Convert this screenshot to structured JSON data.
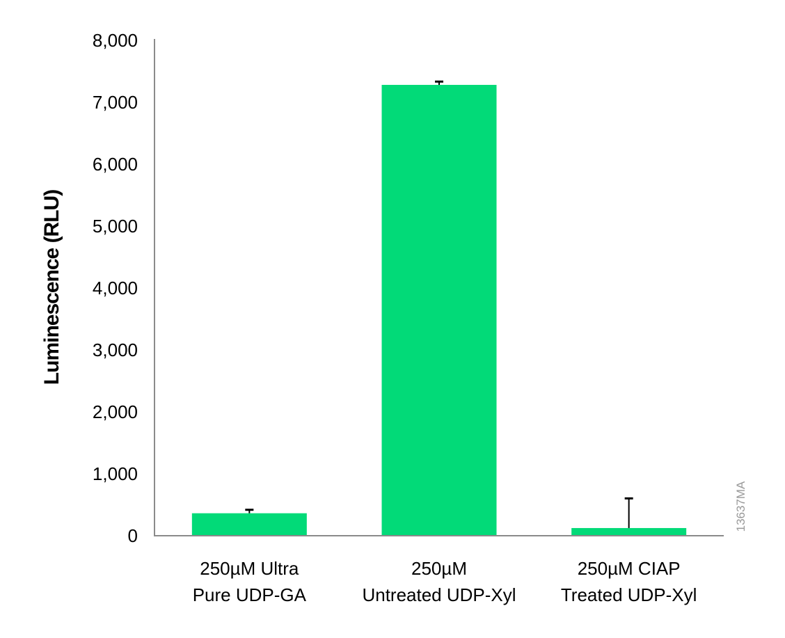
{
  "chart_data": {
    "type": "bar",
    "title": "",
    "xlabel": "",
    "ylabel": "Luminescence (RLU)",
    "ylim": [
      0,
      8000
    ],
    "yticks": [
      0,
      1000,
      2000,
      3000,
      4000,
      5000,
      6000,
      7000,
      8000
    ],
    "ytick_labels": [
      "0",
      "1,000",
      "2,000",
      "3,000",
      "4,000",
      "5,000",
      "6,000",
      "7,000",
      "8,000"
    ],
    "grid": false,
    "categories": [
      [
        "250µM Ultra",
        "Pure UDP-GA"
      ],
      [
        "250µM",
        "Untreated UDP-Xyl"
      ],
      [
        "250µM CIAP",
        "Treated UDP-Xyl"
      ]
    ],
    "values": [
      363,
      7281,
      124
    ],
    "error_upper": [
      56,
      53,
      479
    ],
    "bar_color": "#02da78",
    "figure_id": "13637MA"
  }
}
